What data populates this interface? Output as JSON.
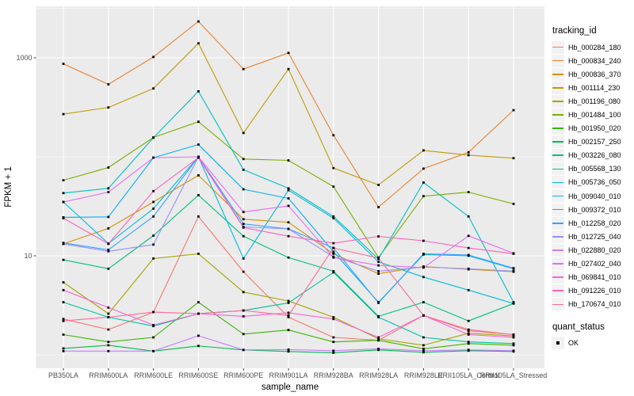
{
  "figure": {
    "background": "#FFFFFF",
    "panel_background": "#EBEBEB",
    "grid_color": "#FFFFFF",
    "axis_text_color": "#4D4D4D",
    "point_color": "#000000"
  },
  "axes": {
    "x": {
      "title": "sample_name",
      "categories": [
        "PB350LA",
        "RRIM600LA",
        "RRIM600LE",
        "RRIM600SE",
        "RRIM600PE",
        "RRIM901LA",
        "RRIM928BA",
        "RRIM928LA",
        "RRIM928LE",
        "RRII105LA_Control",
        "RRII105LA_Stressed"
      ]
    },
    "y": {
      "title": "FPKM + 1",
      "scale": "log10",
      "labeled_ticks": [
        1000,
        10
      ],
      "minor_gridlines": [
        3162,
        100,
        1
      ]
    }
  },
  "legends": [
    {
      "title": "tracking_id",
      "type": "line"
    },
    {
      "title": "quant_status",
      "type": "point",
      "entries": [
        {
          "label": "OK",
          "color": "#000000"
        }
      ]
    }
  ],
  "chart_data": {
    "type": "line",
    "title": "",
    "xlabel": "sample_name",
    "ylabel": "FPKM + 1",
    "y_scale": "log10",
    "ylim": [
      0.73,
      3300
    ],
    "grid": true,
    "legend_position": "right",
    "categories": [
      "PB350LA",
      "RRIM600LA",
      "RRIM600LE",
      "RRIM600SE",
      "RRIM600PE",
      "RRIM901LA",
      "RRIM928BA",
      "RRIM928LA",
      "RRIM928LE",
      "RRII105LA_Control",
      "RRII105LA_Stressed"
    ],
    "series": [
      {
        "name": "Hb_000284_180",
        "color": "#F8766D",
        "values": [
          2.3,
          1.8,
          2.7,
          25,
          6.9,
          2.4,
          1.5,
          1.4,
          2.5,
          1.75,
          1.6
        ]
      },
      {
        "name": "Hb_000834_240",
        "color": "#EA8331",
        "values": [
          870,
          540,
          1020,
          2330,
          770,
          1120,
          165,
          31,
          76,
          111,
          296
        ]
      },
      {
        "name": "Hb_000836_370",
        "color": "#D89000",
        "values": [
          13.2,
          18.9,
          35,
          65,
          23.4,
          21.8,
          10.5,
          6.6,
          7.8,
          7.3,
          6.9
        ]
      },
      {
        "name": "Hb_001114_230",
        "color": "#C09B00",
        "values": [
          270,
          315,
          490,
          1400,
          174,
          770,
          77,
          52,
          116,
          104,
          97
        ]
      },
      {
        "name": "Hb_001196_080",
        "color": "#A3A500",
        "values": [
          5.4,
          2.6,
          9.4,
          10.5,
          4.3,
          3.5,
          2.4,
          1.45,
          1.25,
          1.65,
          1.55
        ]
      },
      {
        "name": "Hb_001484_100",
        "color": "#7CAE00",
        "values": [
          58,
          78,
          157,
          226,
          95,
          92,
          50,
          9.6,
          40,
          44,
          33.5
        ]
      },
      {
        "name": "Hb_001950_020",
        "color": "#39B600",
        "values": [
          1.6,
          1.35,
          1.5,
          3.4,
          1.62,
          1.78,
          1.35,
          1.4,
          1.15,
          1.3,
          1.25
        ]
      },
      {
        "name": "Hb_002157_250",
        "color": "#00BB4E",
        "values": [
          1.16,
          1.25,
          1.09,
          1.23,
          1.12,
          1.08,
          1.05,
          1.12,
          1.06,
          1.1,
          1.08
        ]
      },
      {
        "name": "Hb_003226_080",
        "color": "#00BF7D",
        "values": [
          9.1,
          7.4,
          16,
          41,
          15.8,
          9.6,
          7.0,
          2.45,
          3.4,
          2.2,
          3.3
        ]
      },
      {
        "name": "Hb_005568_130",
        "color": "#00C1A3",
        "values": [
          3.4,
          2.4,
          1.95,
          2.6,
          2.8,
          3.35,
          6.8,
          2.4,
          1.5,
          1.35,
          1.3
        ]
      },
      {
        "name": "Hb_005736_050",
        "color": "#00BFC4",
        "values": [
          43,
          48,
          156,
          459,
          74,
          48,
          25,
          9.3,
          55,
          25,
          3.4
        ]
      },
      {
        "name": "Hb_009040_010",
        "color": "#00BAE0",
        "values": [
          35,
          13.3,
          30,
          100,
          9.4,
          46,
          24,
          8.7,
          6.1,
          4.5,
          3.3
        ]
      },
      {
        "name": "Hb_009372_010",
        "color": "#00B0F6",
        "values": [
          24.5,
          24.7,
          98,
          133,
          47,
          38,
          11,
          3.4,
          10.3,
          10,
          7.4
        ]
      },
      {
        "name": "Hb_012258_020",
        "color": "#35A2FF",
        "values": [
          13.5,
          11.5,
          25,
          100,
          21,
          18.7,
          12,
          3.35,
          10.5,
          10.2,
          7.5
        ]
      },
      {
        "name": "Hb_012725_040",
        "color": "#9590FF",
        "values": [
          13.2,
          11.1,
          13,
          100,
          19.6,
          18.7,
          9.8,
          7.0,
          7.7,
          7.4,
          7.0
        ]
      },
      {
        "name": "Hb_022880_020",
        "color": "#C77CFF",
        "values": [
          1.09,
          1.09,
          1.09,
          1.56,
          1.12,
          1.13,
          1.1,
          1.15,
          1.1,
          1.12,
          1.1
        ]
      },
      {
        "name": "Hb_027402_040",
        "color": "#E76BF3",
        "values": [
          35,
          44,
          98,
          100,
          27.7,
          32,
          9.6,
          8.0,
          7.6,
          15.9,
          10.6
        ]
      },
      {
        "name": "Hb_069841_010",
        "color": "#FA62DB",
        "values": [
          4.5,
          3.0,
          2.0,
          2.6,
          2.45,
          2.66,
          2.3,
          1.5,
          2.5,
          1.6,
          1.5
        ]
      },
      {
        "name": "Hb_091226_010",
        "color": "#FF62BC",
        "values": [
          24,
          13.2,
          45,
          98,
          19.3,
          15.8,
          13.4,
          15.7,
          14.2,
          12,
          10.5
        ]
      },
      {
        "name": "Hb_170674_010",
        "color": "#FF6A98",
        "values": [
          2.2,
          2.4,
          2.7,
          2.6,
          2.8,
          2.5,
          12,
          9.5,
          2.5,
          1.8,
          1.6
        ]
      }
    ],
    "quant_status": {
      "label": "OK",
      "marker": "black-square"
    }
  }
}
